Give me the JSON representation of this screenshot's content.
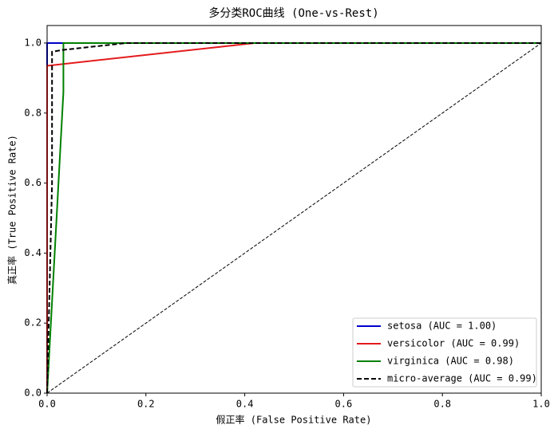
{
  "chart_data": {
    "type": "line",
    "title": "多分类ROC曲线 (One-vs-Rest)",
    "x_label": "假正率 (False Positive Rate)",
    "y_label": "真正率 (True Positive Rate)",
    "xlim": [
      0,
      1
    ],
    "ylim": [
      0,
      1.05
    ],
    "xticks": [
      {
        "value": 0,
        "label": "0.0"
      },
      0.2,
      0.4,
      0.6,
      0.8,
      {
        "value": 1,
        "label": "1.0"
      }
    ],
    "yticks": [
      {
        "value": 0,
        "label": "0.0"
      },
      0.2,
      0.4,
      0.6,
      0.8,
      {
        "value": 1,
        "label": "1.0"
      }
    ],
    "legend": "lower right",
    "series": [
      {
        "name": "setosa (AUC = 1.00)",
        "color": "#0000cc",
        "dash": "solid",
        "x": [
          0,
          0,
          1
        ],
        "values": [
          0,
          1,
          1
        ]
      },
      {
        "name": "versicolor (AUC = 0.99)",
        "color": "#e41a1c",
        "dash": "solid",
        "x": [
          0,
          0,
          0.42,
          1
        ],
        "values": [
          0,
          0.935,
          1,
          1
        ]
      },
      {
        "name": "virginica (AUC = 0.98)",
        "color": "#008000",
        "dash": "solid",
        "x": [
          0,
          0.033,
          0.033,
          1
        ],
        "values": [
          0,
          0.86,
          1,
          1
        ]
      },
      {
        "name": "micro-average (AUC = 0.99)",
        "color": "#000000",
        "dash": "dashed",
        "x": [
          0,
          0.01,
          0.01,
          0.03,
          0.16,
          1
        ],
        "values": [
          0,
          0.6,
          0.975,
          0.98,
          1,
          1
        ]
      }
    ],
    "reference_line": {
      "color": "#000000",
      "x": [
        0,
        1
      ],
      "values": [
        0,
        1
      ]
    }
  }
}
